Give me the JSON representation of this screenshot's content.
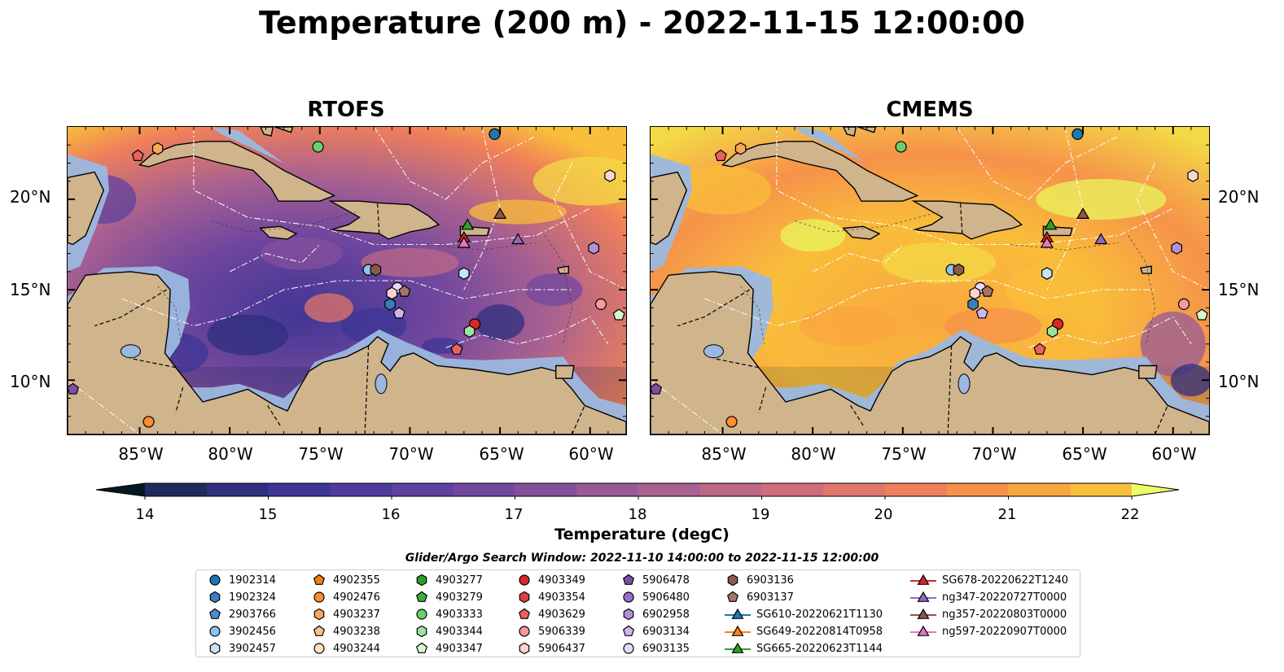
{
  "title": "Temperature (200 m) - 2022-11-15 12:00:00",
  "panels": [
    {
      "title": "RTOFS",
      "variant": "rtofs"
    },
    {
      "title": "CMEMS",
      "variant": "cmems"
    }
  ],
  "lat_labels": [
    "20°N",
    "15°N",
    "10°N"
  ],
  "lat_values": [
    20,
    15,
    10
  ],
  "lon_labels": [
    "85°W",
    "80°W",
    "75°W",
    "70°W",
    "65°W",
    "60°W"
  ],
  "lon_values": [
    -85,
    -80,
    -75,
    -70,
    -65,
    -60
  ],
  "map_extent": {
    "lon_min": -89,
    "lon_max": -58,
    "lat_min": 7,
    "lat_max": 24
  },
  "colorbar": {
    "label": "Temperature (degC)",
    "min": 14,
    "max": 22,
    "step": 0.5,
    "ticks": [
      "14",
      "15",
      "16",
      "17",
      "18",
      "19",
      "20",
      "21",
      "22"
    ],
    "colors": [
      "#082331",
      "#1f2b5c",
      "#2e2f7e",
      "#3d3594",
      "#4e3b9d",
      "#5f419f",
      "#72479e",
      "#84509c",
      "#975a98",
      "#a96190",
      "#bd6886",
      "#cf6e78",
      "#e1766a",
      "#ef7f5a",
      "#f6914a",
      "#f9a63f",
      "#f9be3a",
      "#f3da45",
      "#e8f55e"
    ],
    "under_color": "#041820",
    "over_color": "#eefc6a"
  },
  "search_window": "Glider/Argo Search Window: 2022-11-10 14:00:00 to 2022-11-15 12:00:00",
  "legend": [
    {
      "label": "1902314",
      "marker": "circle",
      "color": "#1f77b4"
    },
    {
      "label": "1902324",
      "marker": "hexagon",
      "color": "#3a7ec2"
    },
    {
      "label": "2903766",
      "marker": "pentagon",
      "color": "#4a90d0"
    },
    {
      "label": "3902456",
      "marker": "circle",
      "color": "#8ec3ea"
    },
    {
      "label": "3902457",
      "marker": "hexagon",
      "color": "#c7e3f7"
    },
    {
      "label": "4902355",
      "marker": "pentagon",
      "color": "#f07f0e"
    },
    {
      "label": "4902476",
      "marker": "circle",
      "color": "#ff8c2e"
    },
    {
      "label": "4903237",
      "marker": "hexagon",
      "color": "#fca65c"
    },
    {
      "label": "4903238",
      "marker": "pentagon",
      "color": "#ffbf86"
    },
    {
      "label": "4903244",
      "marker": "circle",
      "color": "#ffe0bf"
    },
    {
      "label": "4903277",
      "marker": "hexagon",
      "color": "#2a9d2a"
    },
    {
      "label": "4903279",
      "marker": "pentagon",
      "color": "#3cb03c"
    },
    {
      "label": "4903333",
      "marker": "circle",
      "color": "#6ccf6c"
    },
    {
      "label": "4903344",
      "marker": "hexagon",
      "color": "#a0e3a0"
    },
    {
      "label": "4903347",
      "marker": "pentagon",
      "color": "#d6f7d0"
    },
    {
      "label": "4903349",
      "marker": "circle",
      "color": "#d62728"
    },
    {
      "label": "4903354",
      "marker": "hexagon",
      "color": "#de4040"
    },
    {
      "label": "4903629",
      "marker": "pentagon",
      "color": "#ea6060"
    },
    {
      "label": "5906339",
      "marker": "circle",
      "color": "#f59a9a"
    },
    {
      "label": "5906437",
      "marker": "hexagon",
      "color": "#fcd4d4"
    },
    {
      "label": "5906478",
      "marker": "pentagon",
      "color": "#7b4fa8"
    },
    {
      "label": "5906480",
      "marker": "circle",
      "color": "#9a6fcc"
    },
    {
      "label": "6902958",
      "marker": "hexagon",
      "color": "#b38fdb"
    },
    {
      "label": "6903134",
      "marker": "pentagon",
      "color": "#d1b6ee"
    },
    {
      "label": "6903135",
      "marker": "circle",
      "color": "#e8d8fa"
    },
    {
      "label": "6903136",
      "marker": "hexagon",
      "color": "#8c5a4a"
    },
    {
      "label": "6903137",
      "marker": "pentagon",
      "color": "#a87565"
    },
    {
      "label": "SG610-20220621T1130",
      "marker": "triangle",
      "color": "#1f77b4"
    },
    {
      "label": "SG649-20220814T0958",
      "marker": "triangle",
      "color": "#ff7f0e"
    },
    {
      "label": "SG665-20220623T1144",
      "marker": "triangle",
      "color": "#2ca02c"
    },
    {
      "label": "SG678-20220622T1240",
      "marker": "triangle",
      "color": "#d62728"
    },
    {
      "label": "ng347-20220727T0000",
      "marker": "triangle",
      "color": "#9467bd"
    },
    {
      "label": "ng357-20220803T0000",
      "marker": "triangle",
      "color": "#8c564b"
    },
    {
      "label": "ng597-20220907T0000",
      "marker": "triangle",
      "color": "#e377c2"
    }
  ],
  "platforms": [
    {
      "id": "1902314",
      "lon": -65.3,
      "lat": 23.6
    },
    {
      "id": "4903333",
      "lon": -75.1,
      "lat": 22.9
    },
    {
      "id": "4903237",
      "lon": -84.0,
      "lat": 22.8
    },
    {
      "id": "4903629",
      "lon": -85.1,
      "lat": 22.4
    },
    {
      "id": "5906437",
      "lon": -58.9,
      "lat": 21.3
    },
    {
      "id": "SG665-20220623T1144",
      "lon": -66.8,
      "lat": 18.6
    },
    {
      "id": "ng357-20220803T0000",
      "lon": -65.0,
      "lat": 19.2
    },
    {
      "id": "SG678-20220622T1240",
      "lon": -67.0,
      "lat": 17.9
    },
    {
      "id": "ng597-20220907T0000",
      "lon": -67.0,
      "lat": 17.6
    },
    {
      "id": "ng347-20220727T0000",
      "lon": -64.0,
      "lat": 17.8
    },
    {
      "id": "6902958",
      "lon": -59.8,
      "lat": 17.3
    },
    {
      "id": "3902456",
      "lon": -72.3,
      "lat": 16.1
    },
    {
      "id": "6903136",
      "lon": -71.9,
      "lat": 16.1
    },
    {
      "id": "3902457",
      "lon": -67.0,
      "lat": 15.9
    },
    {
      "id": "6903135",
      "lon": -70.7,
      "lat": 15.1
    },
    {
      "id": "6903137",
      "lon": -70.3,
      "lat": 14.9
    },
    {
      "id": "5906437",
      "lon": -71.0,
      "lat": 14.8
    },
    {
      "id": "1902324",
      "lon": -71.1,
      "lat": 14.2
    },
    {
      "id": "6903134",
      "lon": -70.6,
      "lat": 13.7
    },
    {
      "id": "5906339",
      "lon": -59.4,
      "lat": 14.2
    },
    {
      "id": "4903347",
      "lon": -58.4,
      "lat": 13.6
    },
    {
      "id": "4903349",
      "lon": -66.4,
      "lat": 13.1
    },
    {
      "id": "4903344",
      "lon": -66.7,
      "lat": 12.7
    },
    {
      "id": "4903629",
      "lon": -67.4,
      "lat": 11.7
    },
    {
      "id": "5906478",
      "lon": -88.7,
      "lat": 9.5
    },
    {
      "id": "4902476",
      "lon": -84.5,
      "lat": 7.7
    }
  ]
}
